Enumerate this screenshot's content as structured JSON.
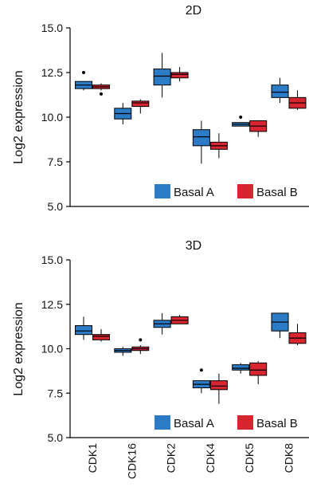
{
  "chart_data": [
    {
      "type": "box",
      "title": "2D",
      "ylabel": "Log2 expression",
      "ylim": [
        5.0,
        15.0
      ],
      "yticks": [
        "5.0",
        "7.5",
        "10.0",
        "12.5",
        "15.0"
      ],
      "ytick_values": [
        5.0,
        7.5,
        10.0,
        12.5,
        15.0
      ],
      "categories": [
        "CDK1",
        "CDK16",
        "CDK2",
        "CDK4",
        "CDK5",
        "CDK8"
      ],
      "legend": [
        {
          "name": "Basal A",
          "color": "#2c7bc6"
        },
        {
          "name": "Basal B",
          "color": "#d7262f"
        }
      ],
      "series": [
        {
          "name": "Basal A",
          "color": "#2c7bc6",
          "boxes": [
            {
              "min": 11.5,
              "q1": 11.6,
              "median": 11.8,
              "q3": 12.0,
              "max": 12.0,
              "outliers": [
                12.5
              ]
            },
            {
              "min": 9.6,
              "q1": 9.9,
              "median": 10.2,
              "q3": 10.5,
              "max": 10.8,
              "outliers": []
            },
            {
              "min": 11.1,
              "q1": 11.8,
              "median": 12.3,
              "q3": 12.7,
              "max": 13.6,
              "outliers": []
            },
            {
              "min": 7.4,
              "q1": 8.4,
              "median": 8.9,
              "q3": 9.3,
              "max": 9.8,
              "outliers": []
            },
            {
              "min": 9.5,
              "q1": 9.5,
              "median": 9.6,
              "q3": 9.7,
              "max": 9.7,
              "outliers": [
                10.0
              ]
            },
            {
              "min": 10.8,
              "q1": 11.1,
              "median": 11.4,
              "q3": 11.8,
              "max": 12.2,
              "outliers": []
            }
          ]
        },
        {
          "name": "Basal B",
          "color": "#d7262f",
          "boxes": [
            {
              "min": 11.5,
              "q1": 11.6,
              "median": 11.7,
              "q3": 11.8,
              "max": 11.9,
              "outliers": [
                11.3
              ]
            },
            {
              "min": 10.2,
              "q1": 10.6,
              "median": 10.8,
              "q3": 10.9,
              "max": 11.0,
              "outliers": []
            },
            {
              "min": 12.0,
              "q1": 12.2,
              "median": 12.4,
              "q3": 12.5,
              "max": 12.8,
              "outliers": []
            },
            {
              "min": 7.7,
              "q1": 8.2,
              "median": 8.4,
              "q3": 8.6,
              "max": 9.1,
              "outliers": []
            },
            {
              "min": 8.9,
              "q1": 9.2,
              "median": 9.5,
              "q3": 9.8,
              "max": 9.8,
              "outliers": []
            },
            {
              "min": 10.4,
              "q1": 10.5,
              "median": 10.8,
              "q3": 11.1,
              "max": 11.5,
              "outliers": []
            }
          ]
        }
      ]
    },
    {
      "type": "box",
      "title": "3D",
      "ylabel": "Log2 expression",
      "ylim": [
        5.0,
        15.0
      ],
      "yticks": [
        "5.0",
        "7.5",
        "10.0",
        "12.5",
        "15.0"
      ],
      "ytick_values": [
        5.0,
        7.5,
        10.0,
        12.5,
        15.0
      ],
      "categories": [
        "CDK1",
        "CDK16",
        "CDK2",
        "CDK4",
        "CDK5",
        "CDK8"
      ],
      "legend": [
        {
          "name": "Basal A",
          "color": "#2c7bc6"
        },
        {
          "name": "Basal B",
          "color": "#d7262f"
        }
      ],
      "series": [
        {
          "name": "Basal A",
          "color": "#2c7bc6",
          "boxes": [
            {
              "min": 10.5,
              "q1": 10.8,
              "median": 11.0,
              "q3": 11.3,
              "max": 11.8,
              "outliers": []
            },
            {
              "min": 9.6,
              "q1": 9.8,
              "median": 9.9,
              "q3": 10.0,
              "max": 10.1,
              "outliers": []
            },
            {
              "min": 10.8,
              "q1": 11.2,
              "median": 11.4,
              "q3": 11.6,
              "max": 12.0,
              "outliers": []
            },
            {
              "min": 7.5,
              "q1": 7.8,
              "median": 8.0,
              "q3": 8.2,
              "max": 8.2,
              "outliers": [
                8.8
              ]
            },
            {
              "min": 8.6,
              "q1": 8.8,
              "median": 8.9,
              "q3": 9.1,
              "max": 9.2,
              "outliers": []
            },
            {
              "min": 10.6,
              "q1": 11.0,
              "median": 11.5,
              "q3": 12.0,
              "max": 12.0,
              "outliers": []
            }
          ]
        },
        {
          "name": "Basal B",
          "color": "#d7262f",
          "boxes": [
            {
              "min": 10.4,
              "q1": 10.5,
              "median": 10.7,
              "q3": 10.8,
              "max": 11.1,
              "outliers": []
            },
            {
              "min": 9.7,
              "q1": 9.9,
              "median": 10.0,
              "q3": 10.1,
              "max": 10.2,
              "outliers": [
                10.5
              ]
            },
            {
              "min": 11.4,
              "q1": 11.4,
              "median": 11.6,
              "q3": 11.8,
              "max": 11.9,
              "outliers": []
            },
            {
              "min": 6.9,
              "q1": 7.7,
              "median": 7.9,
              "q3": 8.2,
              "max": 8.6,
              "outliers": []
            },
            {
              "min": 8.0,
              "q1": 8.5,
              "median": 8.8,
              "q3": 9.2,
              "max": 9.3,
              "outliers": []
            },
            {
              "min": 10.2,
              "q1": 10.3,
              "median": 10.6,
              "q3": 10.9,
              "max": 11.4,
              "outliers": []
            }
          ]
        }
      ]
    }
  ]
}
